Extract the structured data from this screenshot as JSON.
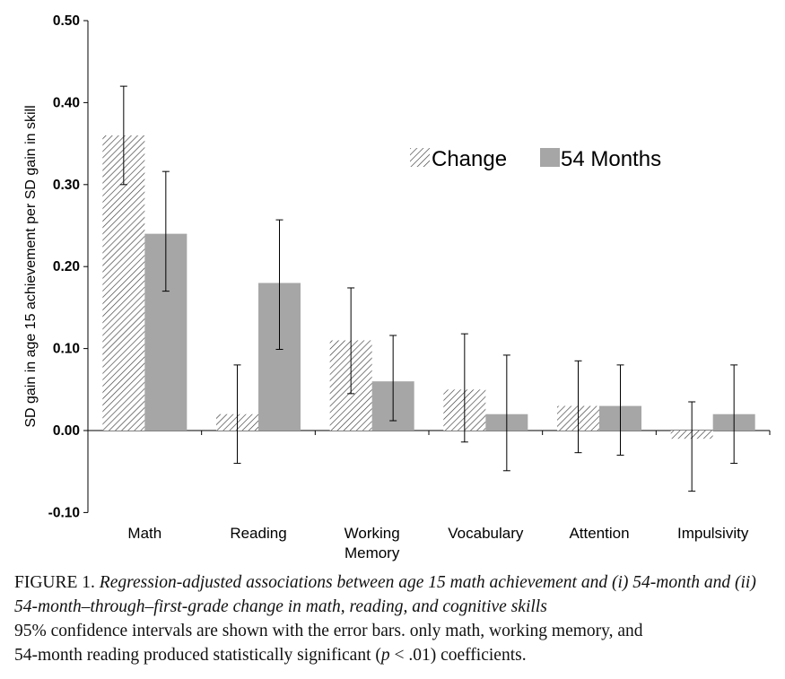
{
  "chart_data": {
    "type": "bar",
    "ylabel": "SD gain in age 15 achievement per SD gain in skill",
    "ylim": [
      -0.1,
      0.5
    ],
    "yticks": [
      "0.50",
      "0.40",
      "0.30",
      "0.20",
      "0.10",
      "0.00",
      "-0.10"
    ],
    "ytick_values": [
      0.5,
      0.4,
      0.3,
      0.2,
      0.1,
      0.0,
      -0.1
    ],
    "categories": [
      [
        "Math"
      ],
      [
        "Reading"
      ],
      [
        "Working",
        "Memory"
      ],
      [
        "Vocabulary"
      ],
      [
        "Attention"
      ],
      [
        "Impulsivity"
      ]
    ],
    "legend_position": "upper-right",
    "series": [
      {
        "name": "Change",
        "style": "hatched",
        "values": [
          0.36,
          0.02,
          0.11,
          0.05,
          0.03,
          -0.01
        ],
        "ci_low": [
          0.3,
          -0.04,
          0.045,
          -0.014,
          -0.027,
          -0.074
        ],
        "ci_high": [
          0.42,
          0.08,
          0.174,
          0.118,
          0.085,
          0.035
        ]
      },
      {
        "name": "54 Months",
        "style": "solid",
        "color": "#a6a6a6",
        "values": [
          0.24,
          0.18,
          0.06,
          0.02,
          0.03,
          0.02
        ],
        "ci_low": [
          0.17,
          0.099,
          0.012,
          -0.049,
          -0.03,
          -0.04
        ],
        "ci_high": [
          0.316,
          0.257,
          0.116,
          0.092,
          0.08,
          0.08
        ]
      }
    ]
  },
  "caption": {
    "label": "FIGURE 1. ",
    "title": "Regression-adjusted associations between age 15 math achievement and (i) 54-month and (ii) 54-month–through–first-grade change in math, reading, and cognitive skills",
    "line3": "95% confidence intervals are shown with the error bars. only math, working memory, and",
    "line4_pre": "54-month reading produced statistically significant (",
    "line4_p": "p",
    "line4_post": " < .01) coefficients."
  }
}
